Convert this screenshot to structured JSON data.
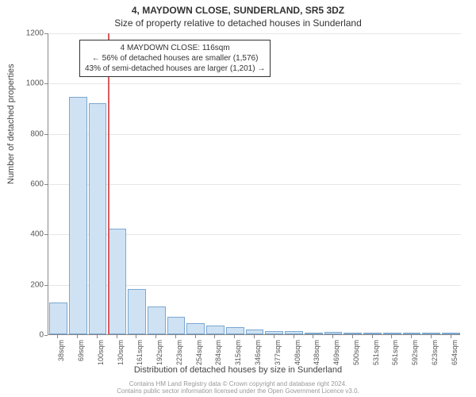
{
  "header": {
    "line1": "4, MAYDOWN CLOSE, SUNDERLAND, SR5 3DZ",
    "line2": "Size of property relative to detached houses in Sunderland"
  },
  "chart": {
    "type": "bar",
    "ylabel": "Number of detached properties",
    "xlabel": "Distribution of detached houses by size in Sunderland",
    "ylim": [
      0,
      1200
    ],
    "ytick_step": 200,
    "yticks": [
      0,
      200,
      400,
      600,
      800,
      1000,
      1200
    ],
    "categories": [
      "38sqm",
      "69sqm",
      "100sqm",
      "130sqm",
      "161sqm",
      "192sqm",
      "223sqm",
      "254sqm",
      "284sqm",
      "315sqm",
      "346sqm",
      "377sqm",
      "408sqm",
      "438sqm",
      "469sqm",
      "500sqm",
      "531sqm",
      "561sqm",
      "592sqm",
      "623sqm",
      "654sqm"
    ],
    "values": [
      125,
      945,
      920,
      420,
      180,
      110,
      70,
      45,
      35,
      30,
      18,
      14,
      12,
      5,
      10,
      4,
      3,
      2,
      4,
      2,
      1
    ],
    "bar_fill": "#cfe2f3",
    "bar_border": "#7ba7d1",
    "grid_color": "#e6e6e6",
    "axis_color": "#888888",
    "background_color": "#ffffff",
    "marker": {
      "value_sqm": 116,
      "color": "#d85c5c"
    },
    "annotation": {
      "lines": [
        "4 MAYDOWN CLOSE: 116sqm",
        "← 56% of detached houses are smaller (1,576)",
        "43% of semi-detached houses are larger (1,201) →"
      ],
      "border_color": "#333333",
      "bg": "#ffffff",
      "fontsize": 10
    },
    "title_fontsize": 12,
    "label_fontsize": 11,
    "tick_fontsize": 10
  },
  "attribution": {
    "line1": "Contains HM Land Registry data © Crown copyright and database right 2024.",
    "line2": "Contains public sector information licensed under the Open Government Licence v3.0."
  }
}
